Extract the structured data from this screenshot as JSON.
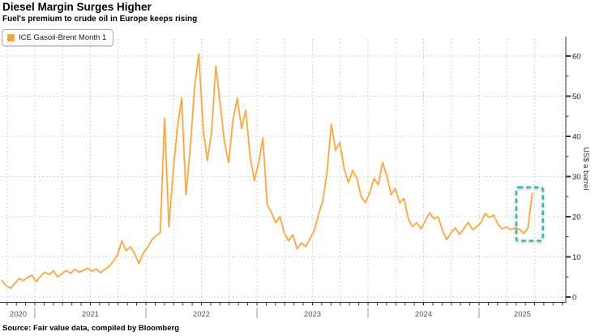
{
  "header": {
    "title": "Diesel Margin Surges Higher",
    "subtitle": "Fuel's premium to crude oil in Europe keeps rising"
  },
  "legend": {
    "label": "ICE Gasoil-Brent Month 1",
    "swatch_color": "#F5A43B"
  },
  "source": {
    "text": "Source: Fair value data, compiled by Bloomberg"
  },
  "colors": {
    "line": "#F5A43B",
    "line_halo": "#FACD93",
    "grid": "#ababab",
    "axis": "#333333",
    "tick_label": "#222222",
    "year_label": "#555555",
    "separator": "#999999",
    "highlight": "#2FB8A5"
  },
  "chart_data": {
    "type": "line",
    "title": "Diesel Margin Surges Higher",
    "subtitle": "Fuel's premium to crude oil in Europe keeps rising",
    "xlabel": "",
    "ylabel": "US$ a barrel",
    "grid": "dotted, horizontal every 10 units, vertical quarterly",
    "legend_position": "top-left",
    "series": [
      {
        "name": "ICE Gasoil-Brent Month 1",
        "color": "#F5A43B",
        "x_start_year": 2020.705,
        "x_step_years": 0.0385,
        "values": [
          4.0,
          2.8,
          2.2,
          3.4,
          4.6,
          4.1,
          4.9,
          5.4,
          3.9,
          5.2,
          6.2,
          5.6,
          6.5,
          5.0,
          5.8,
          6.6,
          5.9,
          6.9,
          6.2,
          6.6,
          7.2,
          6.4,
          7.0,
          6.1,
          6.8,
          7.6,
          8.8,
          10.5,
          14.0,
          11.5,
          12.5,
          10.8,
          8.3,
          10.9,
          12.3,
          14.2,
          15.3,
          16.0,
          44.5,
          17.5,
          31.0,
          42.0,
          49.5,
          25.5,
          37.0,
          52.0,
          60.5,
          42.0,
          34.0,
          41.0,
          57.5,
          48.0,
          38.5,
          33.5,
          44.0,
          49.5,
          42.0,
          46.5,
          35.0,
          29.0,
          33.5,
          39.5,
          23.0,
          21.0,
          18.5,
          20.0,
          16.0,
          14.0,
          15.5,
          12.0,
          13.5,
          12.5,
          14.5,
          16.5,
          20.5,
          24.0,
          31.0,
          43.0,
          36.5,
          38.5,
          32.0,
          28.5,
          31.5,
          29.5,
          25.0,
          23.5,
          26.0,
          29.5,
          28.0,
          33.5,
          30.0,
          25.5,
          27.0,
          23.5,
          24.5,
          19.5,
          17.5,
          18.5,
          17.0,
          19.0,
          21.0,
          19.5,
          20.0,
          16.5,
          14.3,
          16.0,
          17.2,
          15.6,
          17.0,
          18.6,
          16.8,
          17.5,
          18.5,
          20.8,
          19.8,
          20.4,
          18.0,
          17.0,
          17.4,
          16.8,
          17.2,
          16.9,
          15.8,
          17.2,
          25.8
        ]
      }
    ],
    "x_axis": {
      "year_labels": [
        "2020",
        "2021",
        "2022",
        "2023",
        "2024",
        "2025"
      ],
      "range_years": [
        2020.705,
        2025.78
      ],
      "minor_ticks": "monthly",
      "vertical_grid": "quarterly"
    },
    "y_axis": {
      "label": "US$ a barrel",
      "side": "right",
      "major_ticks": [
        0,
        10,
        20,
        30,
        40,
        50,
        60
      ],
      "minor_tick_step": 5,
      "range": [
        0,
        60
      ]
    },
    "annotations": [
      {
        "type": "dashed-box",
        "color": "#2FB8A5",
        "x_from_year": 2025.335,
        "x_to_year": 2025.575,
        "y_from_value": 14.0,
        "y_to_value": 27.3
      }
    ]
  }
}
